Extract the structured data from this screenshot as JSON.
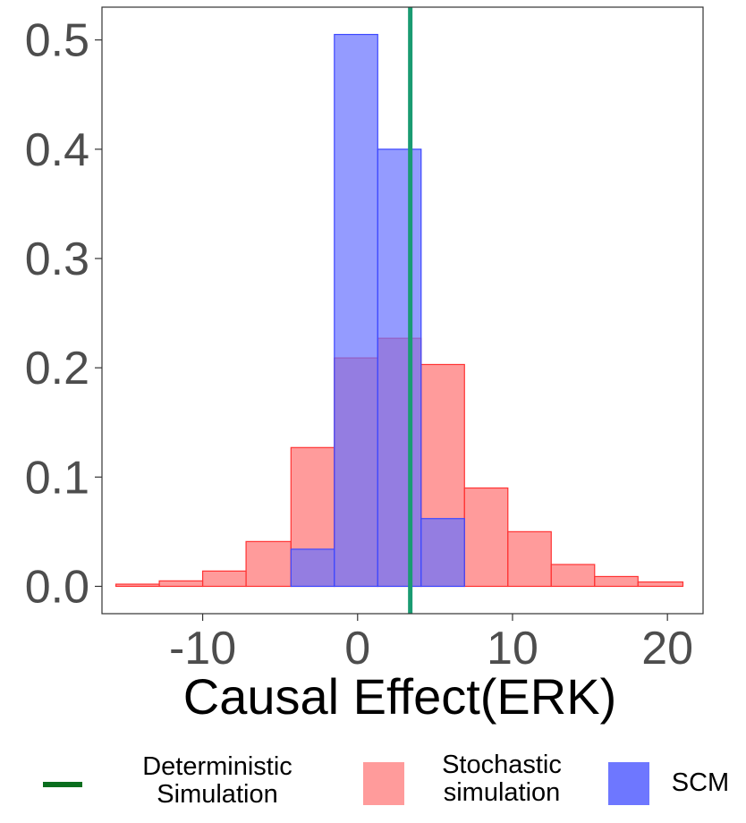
{
  "chart_data": {
    "type": "bar",
    "subtype": "histogram",
    "title": "",
    "xlabel": "Causal Effect(ERK)",
    "ylabel": "",
    "xlim": [
      -16.5,
      22.3
    ],
    "ylim": [
      -0.025,
      0.53
    ],
    "x_ticks": [
      -10,
      0,
      10,
      20
    ],
    "x_tick_labels": [
      "-10",
      "0",
      "10",
      "20"
    ],
    "y_ticks": [
      0.0,
      0.1,
      0.2,
      0.3,
      0.4,
      0.5
    ],
    "y_tick_labels": [
      "0.0",
      "0.1",
      "0.2",
      "0.3",
      "0.4",
      "0.5"
    ],
    "grid": false,
    "legend_position": "bottom",
    "colors": {
      "stochastic": "#ff6666",
      "scm": "#6670ff",
      "deterministic_line": "#1a9b72",
      "legend_line": "#0a6e1e",
      "tick_label": "#4d4d4d"
    },
    "series": [
      {
        "name": "Stochastic simulation",
        "bin_edges": [
          -15.6,
          -12.8,
          -10.0,
          -7.2,
          -4.3,
          -1.5,
          1.3,
          4.1,
          6.9,
          9.7,
          12.5,
          15.3,
          18.1,
          21.0
        ],
        "values": [
          0.002,
          0.005,
          0.014,
          0.041,
          0.127,
          0.209,
          0.227,
          0.203,
          0.09,
          0.05,
          0.02,
          0.009,
          0.004
        ]
      },
      {
        "name": "SCM",
        "bin_edges": [
          -4.3,
          -1.5,
          1.3,
          4.1,
          6.9
        ],
        "values": [
          0.034,
          0.505,
          0.4,
          0.062
        ]
      }
    ],
    "vline": {
      "name": "Deterministic Simulation",
      "x": 3.4
    }
  },
  "legend": {
    "items": [
      {
        "label_line1": "Deterministic",
        "label_line2": "Simulation"
      },
      {
        "label_line1": "Stochastic",
        "label_line2": "simulation"
      },
      {
        "label_line1": "SCM"
      }
    ]
  }
}
